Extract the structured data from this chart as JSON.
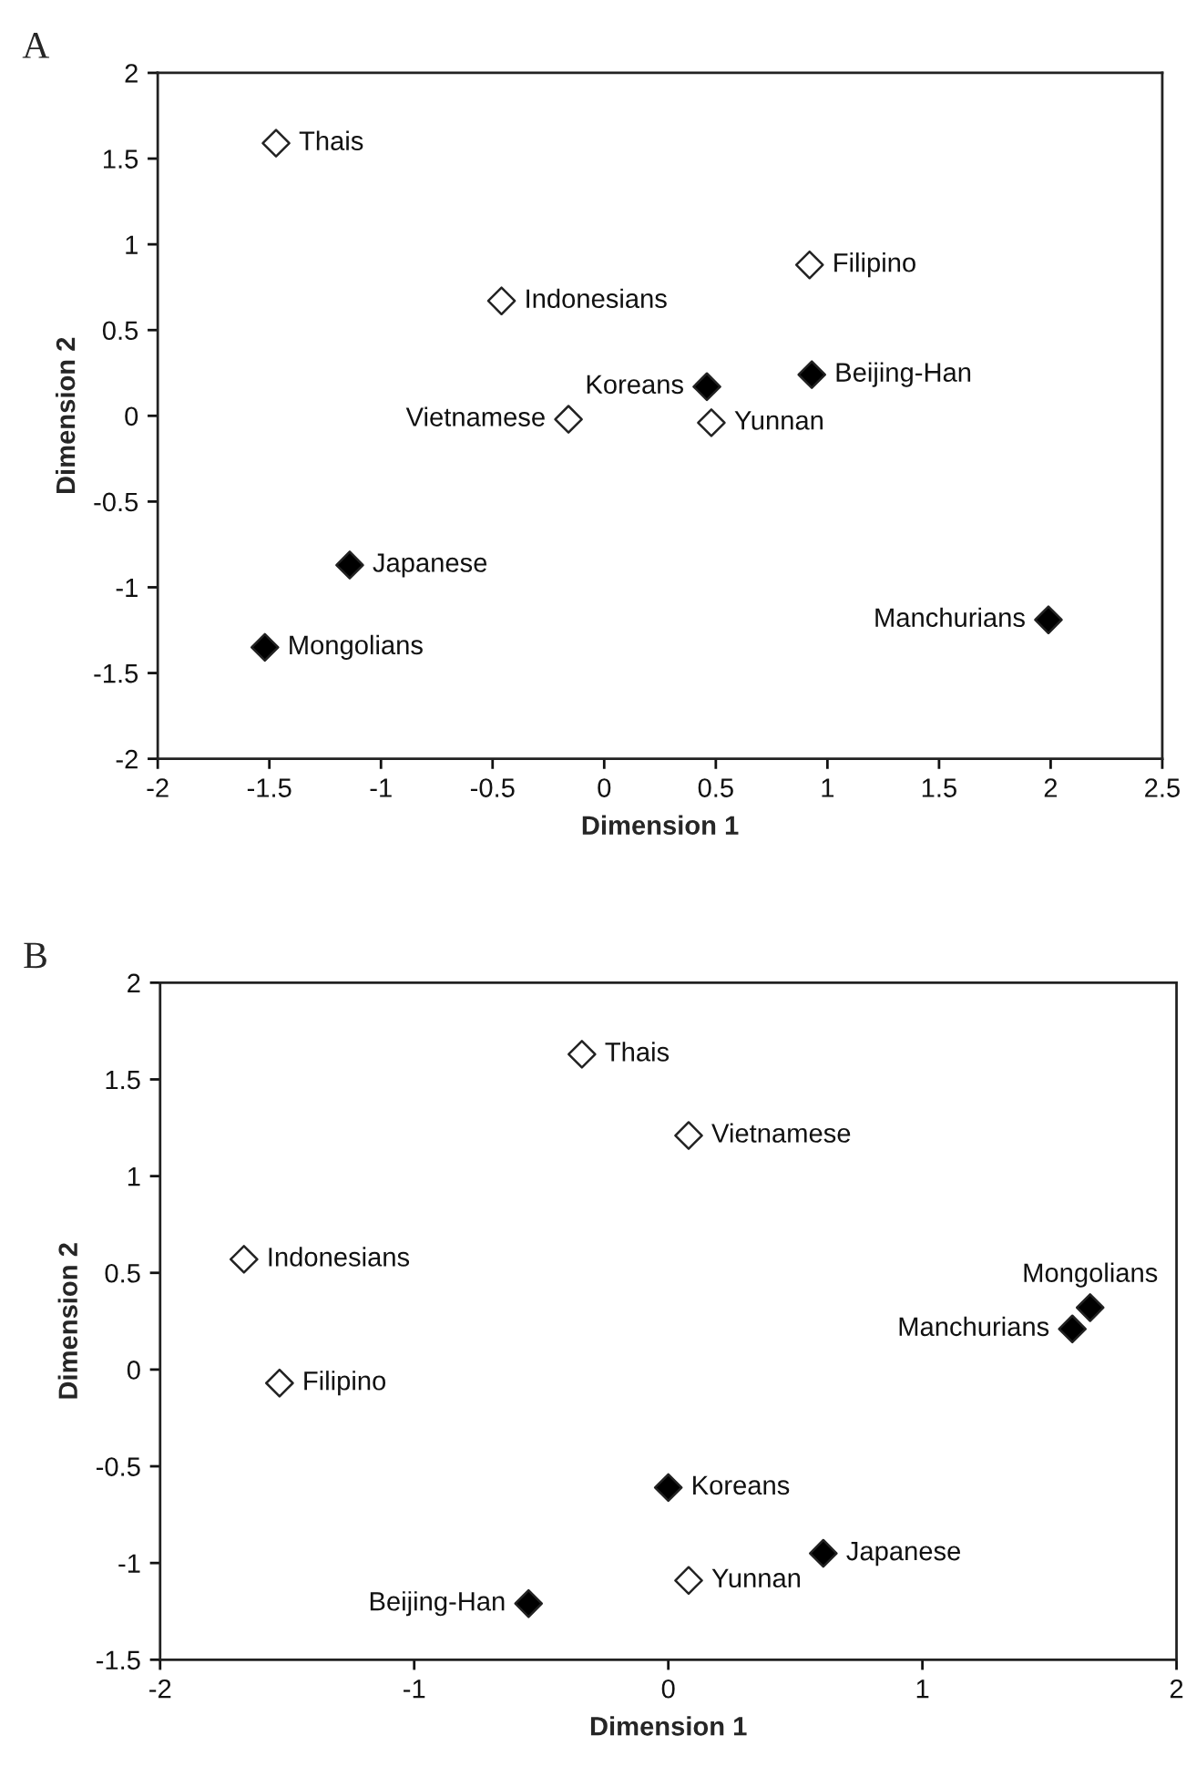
{
  "chart_data": [
    {
      "type": "scatter",
      "title": "A",
      "xlabel": "Dimension 1",
      "ylabel": "Dimension 2",
      "marker": "diamond",
      "grid": false,
      "legend": false,
      "xlim": [
        -2,
        2.5
      ],
      "xticks": [
        -2,
        -1.5,
        -1,
        -0.5,
        0,
        0.5,
        1,
        1.5,
        2,
        2.5
      ],
      "ylim": [
        -2,
        2
      ],
      "yticks": [
        -2,
        -1.5,
        -1,
        -0.5,
        0,
        0.5,
        1,
        1.5,
        2
      ],
      "series": [
        {
          "color": "#ffffff",
          "x": [
            -1.47,
            -0.46,
            0.92,
            -0.16,
            0.48
          ],
          "values": [
            1.59,
            0.67,
            0.88,
            -0.02,
            -0.04
          ]
        },
        {
          "color": "#000000",
          "x": [
            0.46,
            0.93,
            -1.14,
            -1.52,
            1.99
          ],
          "values": [
            0.17,
            0.24,
            -0.87,
            -1.35,
            -1.19
          ]
        }
      ],
      "annotations": [
        {
          "text": "Thais",
          "x": -1.47,
          "y": 1.59
        },
        {
          "text": "Indonesians",
          "x": -0.46,
          "y": 0.67
        },
        {
          "text": "Filipino",
          "x": 0.92,
          "y": 0.88
        },
        {
          "text": "Vietnamese",
          "x": -0.16,
          "y": -0.02
        },
        {
          "text": "Yunnan",
          "x": 0.48,
          "y": -0.04
        },
        {
          "text": "Koreans",
          "x": 0.46,
          "y": 0.17
        },
        {
          "text": "Beijing-Han",
          "x": 0.93,
          "y": 0.24
        },
        {
          "text": "Japanese",
          "x": -1.14,
          "y": -0.87
        },
        {
          "text": "Mongolians",
          "x": -1.52,
          "y": -1.35
        },
        {
          "text": "Manchurians",
          "x": 1.99,
          "y": -1.19
        }
      ]
    },
    {
      "type": "scatter",
      "title": "B",
      "xlabel": "Dimension 1",
      "ylabel": "Dimension 2",
      "marker": "diamond",
      "grid": false,
      "legend": false,
      "xlim": [
        -2,
        2
      ],
      "xticks": [
        -2,
        -1,
        0,
        1,
        2
      ],
      "ylim": [
        -1.5,
        2
      ],
      "yticks": [
        -1.5,
        -1,
        -0.5,
        0,
        0.5,
        1,
        1.5,
        2
      ],
      "series": [
        {
          "color": "#ffffff",
          "x": [
            -0.34,
            0.08,
            -1.67,
            -1.53,
            0.08
          ],
          "values": [
            1.63,
            1.21,
            0.57,
            -0.07,
            -1.09
          ]
        },
        {
          "color": "#000000",
          "x": [
            0.0,
            0.61,
            -0.55,
            1.66,
            1.59
          ],
          "values": [
            -0.61,
            -0.95,
            -1.21,
            0.32,
            0.21
          ]
        }
      ],
      "annotations": [
        {
          "text": "Thais",
          "x": -0.34,
          "y": 1.63
        },
        {
          "text": "Vietnamese",
          "x": 0.08,
          "y": 1.21
        },
        {
          "text": "Indonesians",
          "x": -1.67,
          "y": 0.57
        },
        {
          "text": "Filipino",
          "x": -1.53,
          "y": -0.07
        },
        {
          "text": "Yunnan",
          "x": 0.08,
          "y": -1.09
        },
        {
          "text": "Koreans",
          "x": 0.0,
          "y": -0.61
        },
        {
          "text": "Japanese",
          "x": 0.61,
          "y": -0.95
        },
        {
          "text": "Beijing-Han",
          "x": -0.55,
          "y": -1.21
        },
        {
          "text": "Mongolians",
          "x": 1.66,
          "y": 0.32
        },
        {
          "text": "Manchurians",
          "x": 1.59,
          "y": 0.21
        }
      ]
    }
  ]
}
